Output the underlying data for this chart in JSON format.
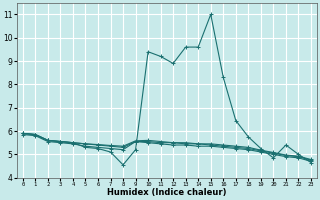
{
  "xlabel": "Humidex (Indice chaleur)",
  "ylabel": "",
  "xlim": [
    -0.5,
    23.5
  ],
  "ylim": [
    4,
    11.5
  ],
  "yticks": [
    4,
    5,
    6,
    7,
    8,
    9,
    10,
    11
  ],
  "xticks": [
    0,
    1,
    2,
    3,
    4,
    5,
    6,
    7,
    8,
    9,
    10,
    11,
    12,
    13,
    14,
    15,
    16,
    17,
    18,
    19,
    20,
    21,
    22,
    23
  ],
  "background_color": "#c8eaea",
  "grid_color": "#b0d8d8",
  "line_color": "#1a7070",
  "lines": [
    {
      "x": [
        0,
        1,
        2,
        3,
        4,
        5,
        6,
        7,
        8,
        9,
        10,
        11,
        12,
        13,
        14,
        15,
        16,
        17,
        18,
        19,
        20,
        21,
        22,
        23
      ],
      "y": [
        5.9,
        5.85,
        5.6,
        5.55,
        5.5,
        5.3,
        5.25,
        5.1,
        4.55,
        5.2,
        9.4,
        9.2,
        8.9,
        9.6,
        9.6,
        11.0,
        8.3,
        6.45,
        5.75,
        5.25,
        4.85,
        5.4,
        5.0,
        4.65
      ]
    },
    {
      "x": [
        0,
        1,
        2,
        3,
        4,
        5,
        6,
        7,
        8,
        9,
        10,
        11,
        12,
        13,
        14,
        15,
        16,
        17,
        18,
        19,
        20,
        21,
        22,
        23
      ],
      "y": [
        5.85,
        5.8,
        5.55,
        5.5,
        5.45,
        5.35,
        5.3,
        5.25,
        5.2,
        5.55,
        5.5,
        5.45,
        5.4,
        5.4,
        5.35,
        5.35,
        5.3,
        5.25,
        5.2,
        5.1,
        5.0,
        4.9,
        4.85,
        4.7
      ]
    },
    {
      "x": [
        0,
        1,
        2,
        3,
        4,
        5,
        6,
        7,
        8,
        9,
        10,
        11,
        12,
        13,
        14,
        15,
        16,
        17,
        18,
        19,
        20,
        21,
        22,
        23
      ],
      "y": [
        5.9,
        5.85,
        5.6,
        5.55,
        5.5,
        5.45,
        5.4,
        5.35,
        5.3,
        5.55,
        5.55,
        5.5,
        5.5,
        5.45,
        5.45,
        5.4,
        5.35,
        5.3,
        5.25,
        5.15,
        5.05,
        4.95,
        4.9,
        4.75
      ]
    },
    {
      "x": [
        0,
        1,
        2,
        3,
        4,
        5,
        6,
        7,
        8,
        9,
        10,
        11,
        12,
        13,
        14,
        15,
        16,
        17,
        18,
        19,
        20,
        21,
        22,
        23
      ],
      "y": [
        5.9,
        5.85,
        5.6,
        5.55,
        5.5,
        5.45,
        5.42,
        5.38,
        5.35,
        5.58,
        5.6,
        5.55,
        5.5,
        5.5,
        5.45,
        5.45,
        5.4,
        5.35,
        5.3,
        5.18,
        5.08,
        4.97,
        4.92,
        4.78
      ]
    }
  ]
}
